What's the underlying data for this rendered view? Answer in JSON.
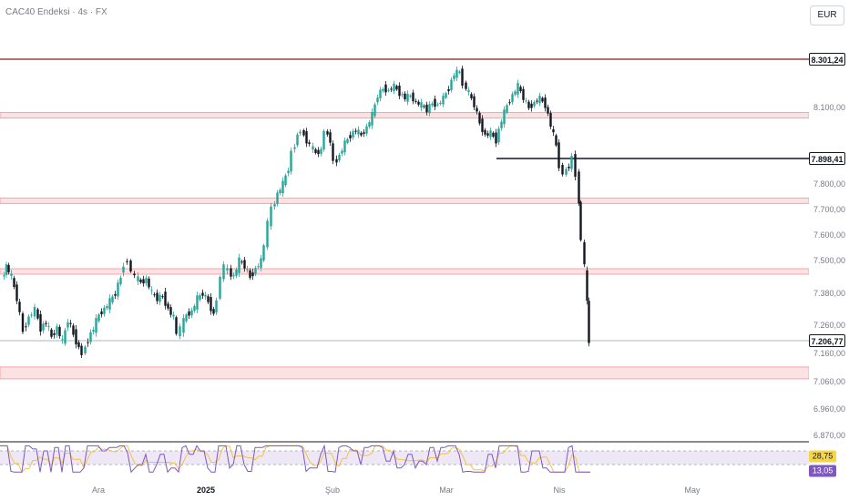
{
  "header": {
    "title": "CAC40 Endeksi · 4s · FX",
    "currency": "EUR"
  },
  "price_axis": {
    "labels": [
      "8.100,00",
      "7.800,00",
      "7.700,00",
      "7.600,00",
      "7.500,00",
      "7.380,00",
      "7.260,00",
      "7.160,00",
      "7.060,00",
      "6.960,00",
      "6.870,00"
    ]
  },
  "badges": {
    "high": "8.301,24",
    "support": "7.898,41",
    "last": "7.206,77"
  },
  "rsi": {
    "value1": "28,75",
    "value2": "13,05",
    "color1": "#f7d54a",
    "color2": "#7e57c2"
  },
  "time_axis": {
    "labels": [
      "Ara",
      "2025",
      "Şub",
      "Mar",
      "Nis",
      "May"
    ]
  },
  "colors": {
    "zone_fill": "#fde2e4",
    "zone_border": "#f5a3aa",
    "high_line": "#7b1f1f",
    "candle_up": "#26a69a",
    "candle_down": "#131722"
  },
  "zones": [
    {
      "top": 8080,
      "bottom": 8060
    },
    {
      "top": 7745,
      "bottom": 7725
    },
    {
      "top": 7470,
      "bottom": 7455
    },
    {
      "top": 7112,
      "bottom": 7070
    }
  ],
  "chart_data": {
    "type": "candlestick",
    "title": "CAC40 Endeksi · 4s · FX",
    "currency": "EUR",
    "y_ticks": [
      8100,
      7800,
      7700,
      7600,
      7500,
      7380,
      7260,
      7160,
      7060,
      6960,
      6870
    ],
    "x_ticks": [
      "Ara",
      "2025",
      "Şub",
      "Mar",
      "Nis",
      "May"
    ],
    "horizontal_levels": [
      8301.24,
      7898.41,
      7206.77
    ],
    "last_price": 7206.77,
    "path": [
      [
        3,
        7430
      ],
      [
        8,
        7480
      ],
      [
        14,
        7440
      ],
      [
        20,
        7360
      ],
      [
        27,
        7240
      ],
      [
        33,
        7290
      ],
      [
        40,
        7320
      ],
      [
        46,
        7250
      ],
      [
        52,
        7270
      ],
      [
        58,
        7220
      ],
      [
        64,
        7250
      ],
      [
        70,
        7200
      ],
      [
        76,
        7280
      ],
      [
        82,
        7230
      ],
      [
        88,
        7180
      ],
      [
        92,
        7160
      ],
      [
        98,
        7210
      ],
      [
        104,
        7250
      ],
      [
        110,
        7300
      ],
      [
        116,
        7320
      ],
      [
        122,
        7350
      ],
      [
        128,
        7380
      ],
      [
        134,
        7440
      ],
      [
        138,
        7490
      ],
      [
        142,
        7500
      ],
      [
        146,
        7460
      ],
      [
        150,
        7440
      ],
      [
        156,
        7420
      ],
      [
        162,
        7430
      ],
      [
        168,
        7380
      ],
      [
        174,
        7360
      ],
      [
        180,
        7370
      ],
      [
        186,
        7320
      ],
      [
        192,
        7290
      ],
      [
        196,
        7230
      ],
      [
        200,
        7250
      ],
      [
        206,
        7300
      ],
      [
        212,
        7310
      ],
      [
        218,
        7360
      ],
      [
        224,
        7380
      ],
      [
        230,
        7350
      ],
      [
        236,
        7300
      ],
      [
        240,
        7360
      ],
      [
        244,
        7440
      ],
      [
        248,
        7480
      ],
      [
        252,
        7460
      ],
      [
        258,
        7440
      ],
      [
        264,
        7500
      ],
      [
        270,
        7480
      ],
      [
        276,
        7440
      ],
      [
        282,
        7470
      ],
      [
        288,
        7500
      ],
      [
        292,
        7560
      ],
      [
        296,
        7650
      ],
      [
        300,
        7700
      ],
      [
        306,
        7760
      ],
      [
        312,
        7800
      ],
      [
        318,
        7860
      ],
      [
        322,
        7920
      ],
      [
        328,
        7990
      ],
      [
        332,
        8010
      ],
      [
        338,
        7970
      ],
      [
        342,
        7950
      ],
      [
        348,
        7920
      ],
      [
        354,
        7930
      ],
      [
        358,
        8010
      ],
      [
        364,
        7970
      ],
      [
        368,
        7880
      ],
      [
        374,
        7910
      ],
      [
        380,
        7960
      ],
      [
        386,
        7990
      ],
      [
        392,
        8010
      ],
      [
        398,
        7990
      ],
      [
        404,
        8020
      ],
      [
        410,
        8070
      ],
      [
        416,
        8150
      ],
      [
        422,
        8180
      ],
      [
        428,
        8170
      ],
      [
        434,
        8190
      ],
      [
        440,
        8160
      ],
      [
        446,
        8140
      ],
      [
        452,
        8150
      ],
      [
        458,
        8120
      ],
      [
        464,
        8110
      ],
      [
        470,
        8090
      ],
      [
        476,
        8120
      ],
      [
        482,
        8110
      ],
      [
        488,
        8140
      ],
      [
        494,
        8180
      ],
      [
        500,
        8240
      ],
      [
        506,
        8250
      ],
      [
        510,
        8200
      ],
      [
        516,
        8160
      ],
      [
        522,
        8110
      ],
      [
        528,
        8040
      ],
      [
        534,
        7990
      ],
      [
        540,
        8000
      ],
      [
        546,
        7970
      ],
      [
        552,
        8050
      ],
      [
        558,
        8110
      ],
      [
        564,
        8150
      ],
      [
        570,
        8190
      ],
      [
        576,
        8140
      ],
      [
        582,
        8100
      ],
      [
        588,
        8120
      ],
      [
        594,
        8140
      ],
      [
        600,
        8110
      ],
      [
        606,
        8030
      ],
      [
        612,
        7950
      ],
      [
        616,
        7870
      ],
      [
        620,
        7840
      ],
      [
        626,
        7870
      ],
      [
        630,
        7900
      ],
      [
        634,
        7840
      ],
      [
        636,
        7730
      ],
      [
        640,
        7580
      ],
      [
        643,
        7480
      ],
      [
        645,
        7340
      ],
      [
        648,
        7207
      ]
    ],
    "rsi": {
      "levels": [
        70,
        30
      ],
      "values": [
        28.75,
        13.05
      ]
    }
  }
}
